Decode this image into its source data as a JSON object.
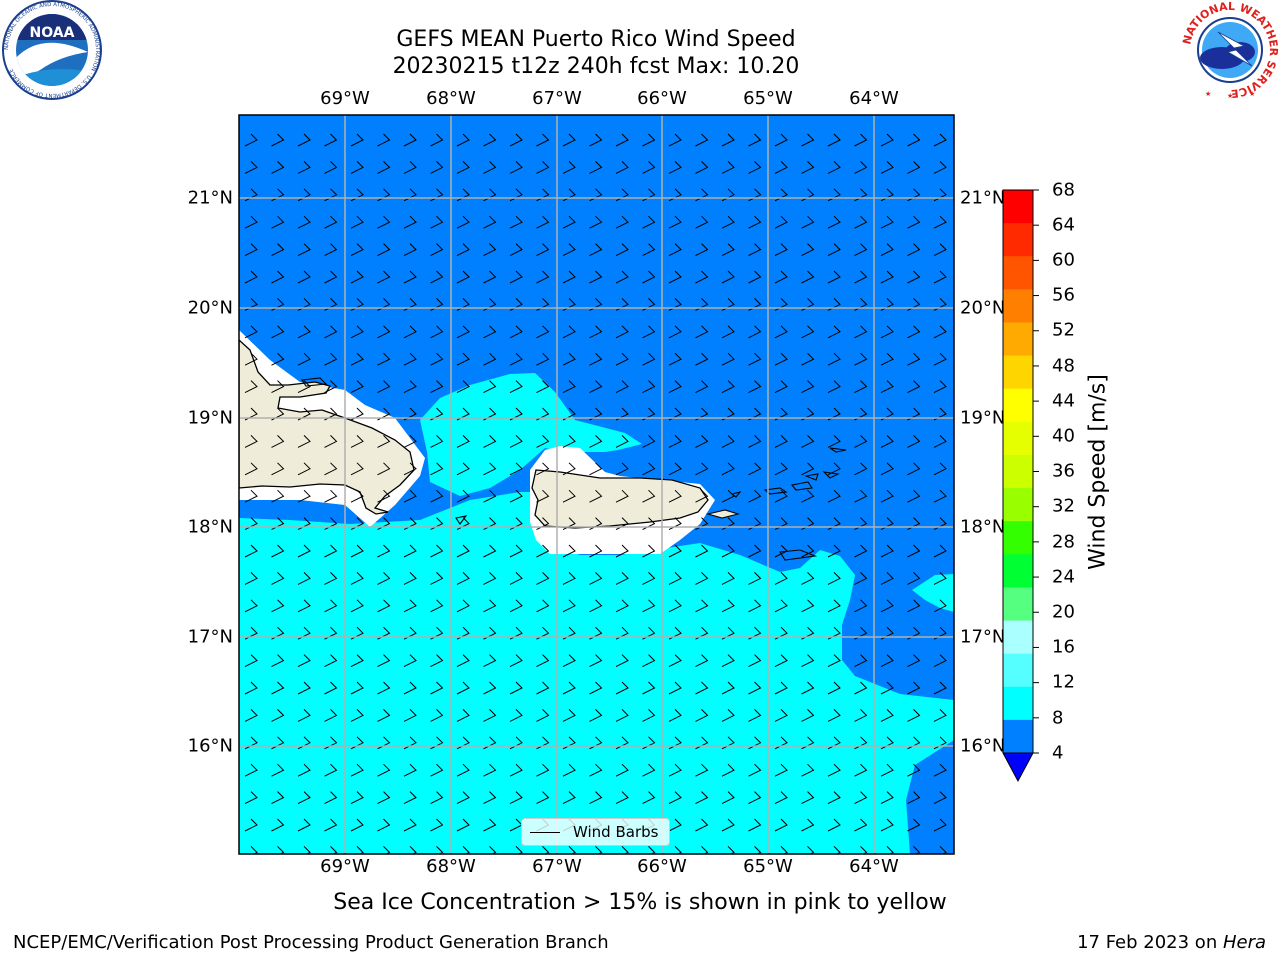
{
  "header": {
    "title_line1": "GEFS MEAN Puerto Rico Wind Speed",
    "title_line2": "20230215 t12z 240h fcst   Max: 10.20"
  },
  "map": {
    "lon_labels": [
      "69°W",
      "68°W",
      "67°W",
      "66°W",
      "65°W",
      "64°W"
    ],
    "lat_labels": [
      "21°N",
      "20°N",
      "19°N",
      "18°N",
      "17°N",
      "16°N"
    ],
    "colors": {
      "wind_4_8": "#0080ff",
      "wind_8_12": "#00ffff",
      "land": "#efedd9",
      "ocean_low": "#ffffff",
      "gridline": "#b0b0b0",
      "coastline": "#000000"
    },
    "legend_label": "Wind Barbs"
  },
  "colorbar": {
    "ticks": [
      "68",
      "64",
      "60",
      "56",
      "52",
      "48",
      "44",
      "40",
      "36",
      "32",
      "28",
      "24",
      "20",
      "16",
      "12",
      "8",
      "4"
    ],
    "colors_top_to_bottom": [
      "#ff0000",
      "#ff2a00",
      "#ff5500",
      "#ff8000",
      "#ffaa00",
      "#ffd500",
      "#ffff00",
      "#e6ff00",
      "#ccff00",
      "#99ff00",
      "#33ff00",
      "#00ff33",
      "#55ff80",
      "#aaffff",
      "#55ffff",
      "#00ffff",
      "#0080ff"
    ],
    "extend_color": "#0000ff",
    "label": "Wind Speed [m/s]"
  },
  "note": "Sea Ice Concentration > 15% is shown in pink to yellow",
  "footer": {
    "left": "NCEP/EMC/Verification Post Processing Product Generation Branch",
    "date": "17 Feb 2023 on ",
    "host": "Hera"
  },
  "logos": {
    "noaa_text": "NOAA",
    "noaa_ring_text": "NATIONAL OCEANIC AND ATMOSPHERIC ADMINISTRATION · U.S. DEPARTMENT OF COMMERCE",
    "nws_ring_text": "NATIONAL WEATHER SERVICE"
  }
}
